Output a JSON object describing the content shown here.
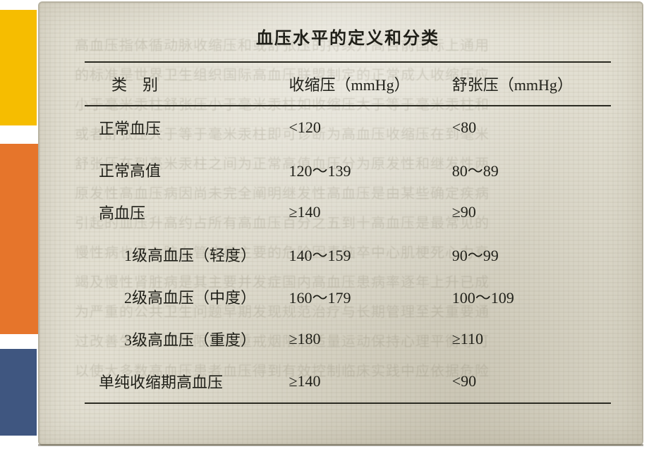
{
  "title": "血压水平的定义和分类",
  "table": {
    "type": "table",
    "background_color": "#e2dfd2",
    "text_color": "#1f1f18",
    "border_color": "#2b2b22",
    "title_fontsize": 24,
    "body_fontsize": 22,
    "font_family": "KaiTi",
    "columns": [
      {
        "key": "category",
        "label": "类别",
        "width_pct": 38
      },
      {
        "key": "systolic",
        "label": "收缩压（mmHg）",
        "width_pct": 31
      },
      {
        "key": "diastolic",
        "label": "舒张压（mmHg）",
        "width_pct": 31
      }
    ],
    "rows": [
      {
        "category": "正常血压",
        "systolic": "<120",
        "diastolic": "<80",
        "indent": false
      },
      {
        "category": "正常高值",
        "systolic": "120～139",
        "diastolic": "80～89",
        "indent": false
      },
      {
        "category": "高血压",
        "systolic": "≥140",
        "diastolic": "≥90",
        "indent": false
      },
      {
        "category": "1级高血压（轻度）",
        "systolic": "140～159",
        "diastolic": "90～99",
        "indent": true
      },
      {
        "category": "2级高血压（中度）",
        "systolic": "160～179",
        "diastolic": "100～109",
        "indent": true
      },
      {
        "category": "3级高血压（重度）",
        "systolic": "≥180",
        "diastolic": "≥110",
        "indent": true
      },
      {
        "category": "单纯收缩期高血压",
        "systolic": "≥140",
        "diastolic": "<90",
        "indent": false
      }
    ]
  },
  "sidebar_colors": {
    "yellow": "#f6bd00",
    "orange": "#e6752b",
    "navy": "#3f5680"
  }
}
